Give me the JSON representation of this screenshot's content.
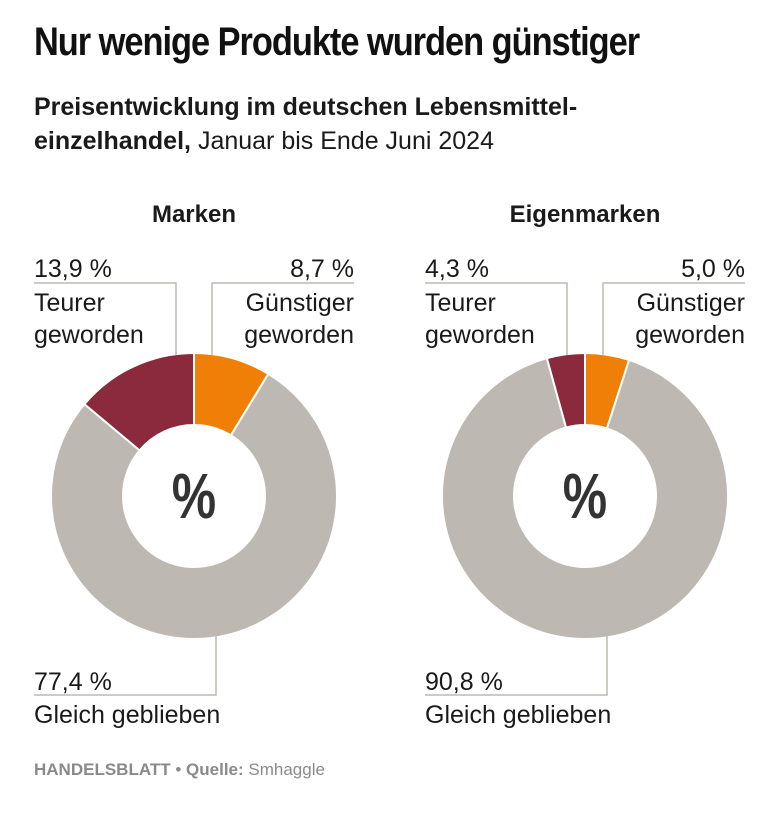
{
  "title": "Nur wenige Produkte wurden günstiger",
  "subtitle": {
    "bold": "Preisentwicklung im deutschen Lebensmittel-einzelhandel,",
    "rest": "Januar bis Ende Juni 2024"
  },
  "colors": {
    "teurer": "#8b2a3d",
    "guenstiger": "#ef7f06",
    "gleich": "#bdb8b1",
    "leader": "#bdb8b1"
  },
  "chart_data": [
    {
      "type": "pie",
      "title": "Marken",
      "center_label": "%",
      "slices": [
        {
          "name": "Günstiger geworden",
          "label": "8,7 %",
          "line1": "Günstiger",
          "line2": "geworden",
          "value": 8.7,
          "color_key": "guenstiger"
        },
        {
          "name": "Gleich geblieben",
          "label": "77,4 %",
          "line1": "Gleich geblieben",
          "line2": "",
          "value": 77.4,
          "color_key": "gleich"
        },
        {
          "name": "Teurer geworden",
          "label": "13,9 %",
          "line1": "Teurer",
          "line2": "geworden",
          "value": 13.9,
          "color_key": "teurer"
        }
      ]
    },
    {
      "type": "pie",
      "title": "Eigenmarken",
      "center_label": "%",
      "slices": [
        {
          "name": "Günstiger geworden",
          "label": "5,0 %",
          "line1": "Günstiger",
          "line2": "geworden",
          "value": 5.0,
          "color_key": "guenstiger"
        },
        {
          "name": "Gleich geblieben",
          "label": "90,8 %",
          "line1": "Gleich geblieben",
          "line2": "",
          "value": 90.8,
          "color_key": "gleich"
        },
        {
          "name": "Teurer geworden",
          "label": "4,3 %",
          "line1": "Teurer",
          "line2": "geworden",
          "value": 4.3,
          "color_key": "teurer"
        }
      ]
    }
  ],
  "footer": {
    "publisher": "HANDELSBLATT",
    "separator": " • ",
    "source_label": "Quelle:",
    "source": " Smhaggle"
  }
}
